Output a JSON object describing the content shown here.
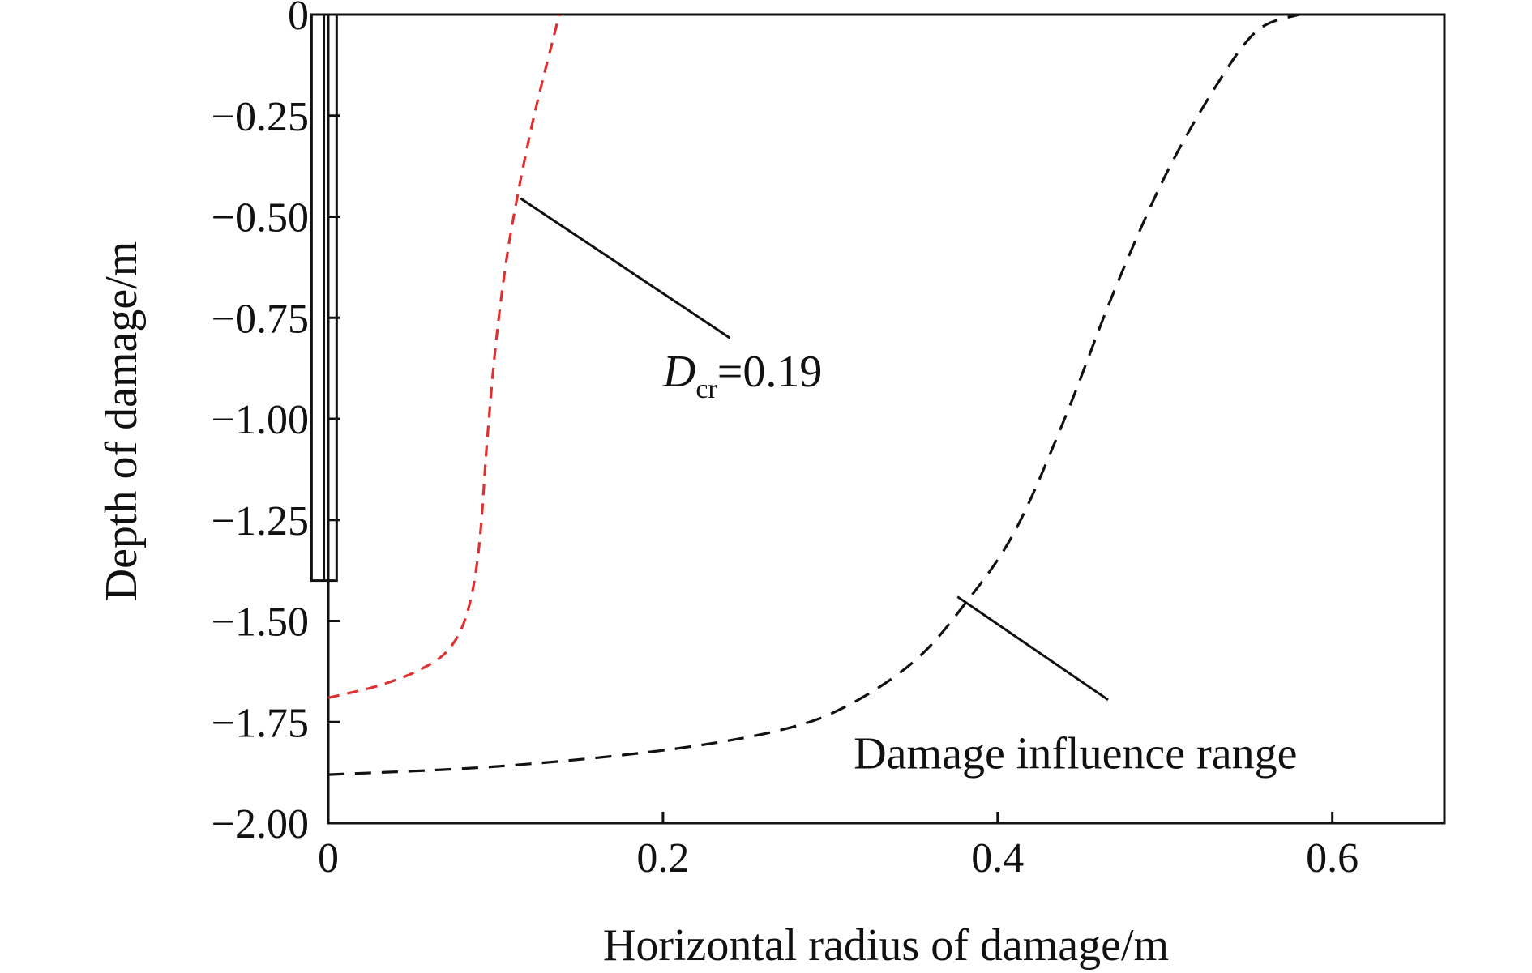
{
  "chart_data": {
    "type": "line",
    "title": "",
    "xlabel": "Horizontal radius of damage/m",
    "ylabel": "Depth of damage/m",
    "xlim": [
      0,
      0.667
    ],
    "ylim": [
      -2.0,
      0
    ],
    "x_ticks": [
      0,
      0.2,
      0.4,
      0.6
    ],
    "x_tick_labels": [
      "0",
      "0.2",
      "0.4",
      "0.6"
    ],
    "y_ticks": [
      0,
      -0.25,
      -0.5,
      -0.75,
      -1.0,
      -1.25,
      -1.5,
      -1.75,
      -2.0
    ],
    "y_tick_labels": [
      "0",
      "−0.25",
      "−0.50",
      "−0.75",
      "−1.00",
      "−1.25",
      "−1.50",
      "−1.75",
      "−2.00"
    ],
    "grid": false,
    "series": [
      {
        "color": "#e03030",
        "style": "dashed",
        "points": [
          [
            0.0,
            -1.69
          ],
          [
            0.03,
            -1.66
          ],
          [
            0.055,
            -1.62
          ],
          [
            0.072,
            -1.57
          ],
          [
            0.083,
            -1.48
          ],
          [
            0.09,
            -1.32
          ],
          [
            0.095,
            -1.05
          ],
          [
            0.1,
            -0.82
          ],
          [
            0.106,
            -0.62
          ],
          [
            0.113,
            -0.45
          ],
          [
            0.123,
            -0.25
          ],
          [
            0.135,
            -0.05
          ],
          [
            0.138,
            0.0
          ]
        ]
      },
      {
        "color": "#111111",
        "style": "dashed",
        "points": [
          [
            0.0,
            -1.88
          ],
          [
            0.1,
            -1.86
          ],
          [
            0.2,
            -1.82
          ],
          [
            0.27,
            -1.77
          ],
          [
            0.31,
            -1.71
          ],
          [
            0.35,
            -1.6
          ],
          [
            0.38,
            -1.46
          ],
          [
            0.41,
            -1.28
          ],
          [
            0.44,
            -1.0
          ],
          [
            0.47,
            -0.68
          ],
          [
            0.5,
            -0.4
          ],
          [
            0.53,
            -0.18
          ],
          [
            0.555,
            -0.04
          ],
          [
            0.58,
            0.0
          ]
        ]
      }
    ],
    "pile": {
      "x_range": [
        -0.01,
        0.005
      ],
      "y_range": [
        -1.4,
        0
      ]
    },
    "annotations": [
      {
        "id": "dcr",
        "text_main": "D",
        "text_sub": "cr",
        "text_rest": "=0.19",
        "label_at": [
          0.2,
          -0.92
        ],
        "leader_from": [
          0.115,
          -0.455
        ],
        "leader_to": [
          0.24,
          -0.8
        ]
      },
      {
        "id": "range",
        "text": "Damage influence range",
        "label_at": [
          0.314,
          -1.865
        ],
        "leader_from": [
          0.376,
          -1.44
        ],
        "leader_to": [
          0.466,
          -1.695
        ]
      }
    ]
  }
}
